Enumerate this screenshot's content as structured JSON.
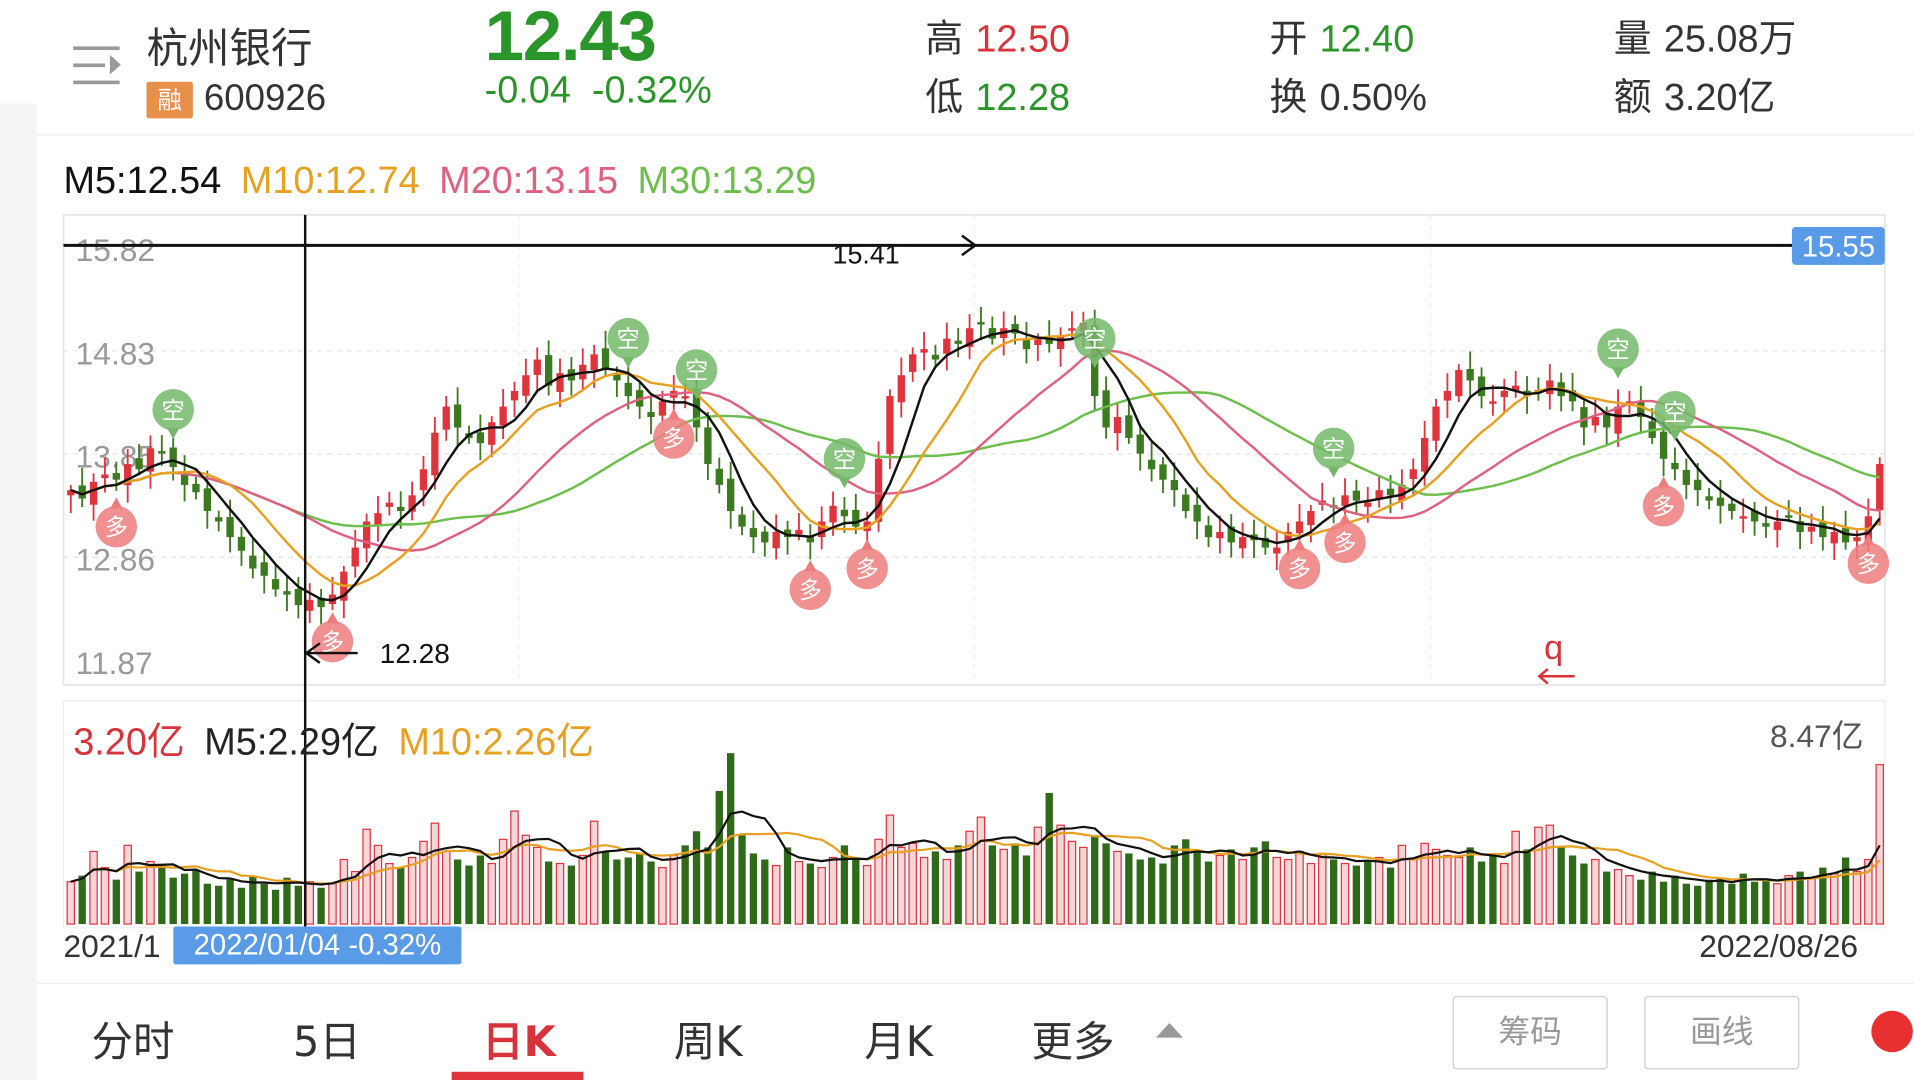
{
  "header": {
    "stock_name": "杭州银行",
    "badge": "融",
    "code": "600926",
    "price": "12.43",
    "change": "-0.04",
    "change_pct": "-0.32%",
    "stats": [
      {
        "label": "高",
        "value": "12.50",
        "color": "red"
      },
      {
        "label": "低",
        "value": "12.28",
        "color": "green"
      },
      {
        "label": "开",
        "value": "12.40",
        "color": "green"
      },
      {
        "label": "换",
        "value": "0.50%",
        "color": "dark"
      },
      {
        "label": "量",
        "value": "25.08万",
        "color": "dark"
      },
      {
        "label": "额",
        "value": "3.20亿",
        "color": "dark"
      }
    ]
  },
  "ma_legend": {
    "m5": "M5:12.54",
    "m10": "M10:12.74",
    "m20": "M20:13.15",
    "m30": "M30:13.29"
  },
  "vol_legend": {
    "amount": "3.20亿",
    "m5": "M5:2.29亿",
    "m10": "M10:2.26亿",
    "max": "8.47亿"
  },
  "colors": {
    "up": "#e0343c",
    "down": "#3b7a1e",
    "ma5": "#111111",
    "ma10": "#e8a020",
    "ma20": "#e06080",
    "ma30": "#6cbf4a",
    "accent": "#5a9be8"
  },
  "chart_data": {
    "type": "candlestick",
    "y_ticks": [
      "15.82",
      "14.83",
      "13.85",
      "12.86",
      "11.87"
    ],
    "ylim": [
      11.87,
      15.82
    ],
    "crosshair": {
      "price_tag": "15.55",
      "high_label": "15.41",
      "low_label": "12.28",
      "date_tag": "2022/01/04  -0.32%",
      "index": 21
    },
    "annotation": "q",
    "start_date": "2021/1",
    "end_date": "2022/08/26",
    "close": [
      13.5,
      13.42,
      13.58,
      13.65,
      13.6,
      13.75,
      13.7,
      13.9,
      13.85,
      13.72,
      13.55,
      13.48,
      13.3,
      13.2,
      13.05,
      12.92,
      12.75,
      12.68,
      12.55,
      12.5,
      12.4,
      12.45,
      12.38,
      12.5,
      12.72,
      12.95,
      13.2,
      13.28,
      13.38,
      13.3,
      13.45,
      13.7,
      14.05,
      14.3,
      14.1,
      14.0,
      13.95,
      14.15,
      14.3,
      14.45,
      14.6,
      14.75,
      14.5,
      14.62,
      14.55,
      14.7,
      14.8,
      14.65,
      14.55,
      14.4,
      14.3,
      14.2,
      14.35,
      14.45,
      14.4,
      14.1,
      13.75,
      13.55,
      13.3,
      13.15,
      13.05,
      13.0,
      13.1,
      13.05,
      13.12,
      13.0,
      13.2,
      13.35,
      13.25,
      13.15,
      13.2,
      13.8,
      14.4,
      14.6,
      14.8,
      14.85,
      14.75,
      14.95,
      14.9,
      15.05,
      15.1,
      14.95,
      15.05,
      15.0,
      14.85,
      14.95,
      14.9,
      14.98,
      15.05,
      15.1,
      14.4,
      14.1,
      14.2,
      14.0,
      13.85,
      13.7,
      13.6,
      13.5,
      13.3,
      13.2,
      13.05,
      13.1,
      13.0,
      13.05,
      13.02,
      12.95,
      12.95,
      13.1,
      13.2,
      13.3,
      13.4,
      13.35,
      13.45,
      13.4,
      13.38,
      13.5,
      13.45,
      13.55,
      13.7,
      14.0,
      14.3,
      14.45,
      14.65,
      14.55,
      14.4,
      14.35,
      14.45,
      14.5,
      14.4,
      14.45,
      14.55,
      14.4,
      14.35,
      14.1,
      14.2,
      14.1,
      14.3,
      14.35,
      14.2,
      14.0,
      13.8,
      13.7,
      13.55,
      13.5,
      13.4,
      13.35,
      13.3,
      13.25,
      13.2,
      13.15,
      13.2,
      13.25,
      13.1,
      13.15,
      13.05,
      13.1,
      13.0,
      13.05,
      13.25,
      13.75
    ],
    "volume_yi": [
      2.1,
      2.4,
      3.6,
      2.8,
      2.2,
      3.9,
      2.6,
      3.1,
      2.9,
      2.3,
      2.5,
      2.7,
      2.0,
      1.9,
      2.2,
      1.8,
      2.4,
      2.0,
      1.7,
      2.3,
      1.9,
      2.1,
      1.8,
      2.0,
      3.2,
      2.6,
      4.7,
      3.9,
      3.0,
      2.8,
      3.3,
      4.1,
      5.0,
      3.6,
      3.2,
      2.9,
      3.4,
      3.0,
      4.2,
      5.6,
      4.4,
      3.8,
      3.1,
      3.0,
      2.9,
      3.4,
      5.1,
      3.6,
      3.2,
      3.3,
      3.5,
      3.1,
      2.8,
      3.4,
      3.9,
      4.6,
      3.8,
      6.6,
      8.47,
      4.4,
      3.5,
      3.2,
      2.9,
      3.8,
      3.1,
      3.0,
      2.8,
      3.3,
      3.9,
      3.2,
      2.9,
      4.2,
      5.4,
      3.8,
      4.0,
      3.3,
      3.6,
      3.2,
      3.9,
      4.6,
      5.3,
      3.9,
      3.7,
      4.0,
      3.4,
      4.8,
      6.5,
      4.9,
      4.1,
      3.8,
      4.4,
      4.0,
      3.6,
      3.5,
      3.2,
      3.3,
      3.0,
      3.9,
      4.2,
      3.6,
      3.1,
      3.4,
      3.7,
      3.2,
      3.8,
      4.1,
      3.3,
      3.2,
      3.6,
      3.0,
      3.5,
      3.2,
      3.0,
      2.9,
      3.1,
      3.3,
      2.8,
      3.9,
      3.2,
      4.0,
      3.7,
      3.4,
      3.3,
      3.8,
      3.1,
      3.4,
      3.0,
      4.6,
      3.7,
      4.8,
      4.9,
      3.8,
      3.4,
      3.0,
      3.2,
      2.6,
      2.7,
      2.4,
      2.2,
      2.6,
      2.1,
      2.4,
      2.0,
      1.9,
      2.2,
      2.3,
      2.0,
      2.5,
      2.1,
      2.2,
      2.0,
      2.4,
      2.6,
      2.3,
      2.8,
      2.5,
      3.3,
      2.6,
      3.2,
      7.9
    ],
    "vol_max": 8.47,
    "signals": [
      {
        "index": 9,
        "type": "空"
      },
      {
        "index": 49,
        "type": "空"
      },
      {
        "index": 55,
        "type": "空"
      },
      {
        "index": 68,
        "type": "空"
      },
      {
        "index": 90,
        "type": "空"
      },
      {
        "index": 111,
        "type": "空"
      },
      {
        "index": 136,
        "type": "空"
      },
      {
        "index": 141,
        "type": "空"
      },
      {
        "index": 4,
        "type": "多"
      },
      {
        "index": 23,
        "type": "多"
      },
      {
        "index": 53,
        "type": "多"
      },
      {
        "index": 65,
        "type": "多"
      },
      {
        "index": 70,
        "type": "多"
      },
      {
        "index": 108,
        "type": "多"
      },
      {
        "index": 112,
        "type": "多"
      },
      {
        "index": 140,
        "type": "多"
      },
      {
        "index": 158,
        "type": "多"
      }
    ]
  },
  "tabs": [
    {
      "label": "分时"
    },
    {
      "label": "5日"
    },
    {
      "label": "日K",
      "active": true
    },
    {
      "label": "周K"
    },
    {
      "label": "月K"
    },
    {
      "label": "更多"
    }
  ],
  "buttons": {
    "chips": "筹码",
    "draw": "画线"
  }
}
